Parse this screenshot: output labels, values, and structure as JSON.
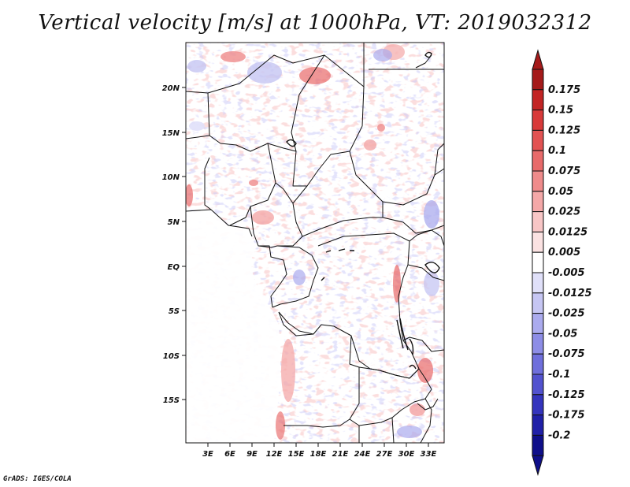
{
  "title": "Vertical velocity [m/s] at 1000hPa, VT: 2019032312",
  "footer": "GrADS: IGES/COLA",
  "map": {
    "variable": "Vertical velocity",
    "units": "m/s",
    "level": "1000hPa",
    "valid_time": "2019032312",
    "lat_range": [
      -20,
      25
    ],
    "lon_range": [
      0,
      36
    ],
    "lat_ticks": [
      {
        "value": 20,
        "label": "20N"
      },
      {
        "value": 15,
        "label": "15N"
      },
      {
        "value": 10,
        "label": "10N"
      },
      {
        "value": 5,
        "label": "5N"
      },
      {
        "value": 0,
        "label": "EQ"
      },
      {
        "value": -5,
        "label": "5S"
      },
      {
        "value": -10,
        "label": "10S"
      },
      {
        "value": -15,
        "label": "15S"
      }
    ],
    "lon_ticks": [
      {
        "value": 3,
        "label": "3E"
      },
      {
        "value": 6,
        "label": "6E"
      },
      {
        "value": 9,
        "label": "9E"
      },
      {
        "value": 12,
        "label": "12E"
      },
      {
        "value": 15,
        "label": "15E"
      },
      {
        "value": 18,
        "label": "18E"
      },
      {
        "value": 21,
        "label": "21E"
      },
      {
        "value": 24,
        "label": "24E"
      },
      {
        "value": 27,
        "label": "27E"
      },
      {
        "value": 30,
        "label": "30E"
      },
      {
        "value": 33,
        "label": "33E"
      }
    ]
  },
  "colorbar": {
    "labels": [
      "0.175",
      "0.15",
      "0.125",
      "0.1",
      "0.075",
      "0.05",
      "0.025",
      "0.0125",
      "0.005",
      "-0.005",
      "-0.0125",
      "-0.025",
      "-0.05",
      "-0.075",
      "-0.1",
      "-0.125",
      "-0.175",
      "-0.2"
    ],
    "colors": [
      "#a51a1a",
      "#c22424",
      "#d83a3a",
      "#e25252",
      "#e86a6a",
      "#ef8b8b",
      "#f4a8a8",
      "#f8c6c6",
      "#fbe2e2",
      "#ffffff",
      "#e0e0f9",
      "#c6c6f3",
      "#ababee",
      "#8d8de6",
      "#6f6fdc",
      "#5252cf",
      "#3434bd",
      "#2020a8",
      "#0f0f8a"
    ],
    "top_arrow_color": "#a51a1a",
    "bottom_arrow_color": "#0f0f8a"
  }
}
